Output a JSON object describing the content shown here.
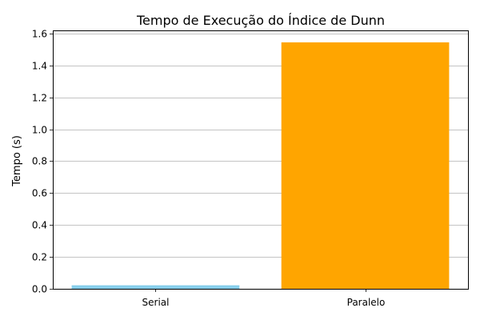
{
  "chart_data": {
    "type": "bar",
    "title": "Tempo de Execução do Índice de Dunn",
    "xlabel": "",
    "ylabel": "Tempo (s)",
    "categories": [
      "Serial",
      "Paralelo"
    ],
    "values": [
      0.022,
      1.545
    ],
    "colors": [
      "#87ceeb",
      "#ffa500"
    ],
    "ylim": [
      0,
      1.62
    ],
    "yticks": [
      0.0,
      0.2,
      0.4,
      0.6,
      0.8,
      1.0,
      1.2,
      1.4,
      1.6
    ],
    "ytick_labels": [
      "0.0",
      "0.2",
      "0.4",
      "0.6",
      "0.8",
      "1.0",
      "1.2",
      "1.4",
      "1.6"
    ],
    "grid": "y",
    "legend": "none"
  }
}
